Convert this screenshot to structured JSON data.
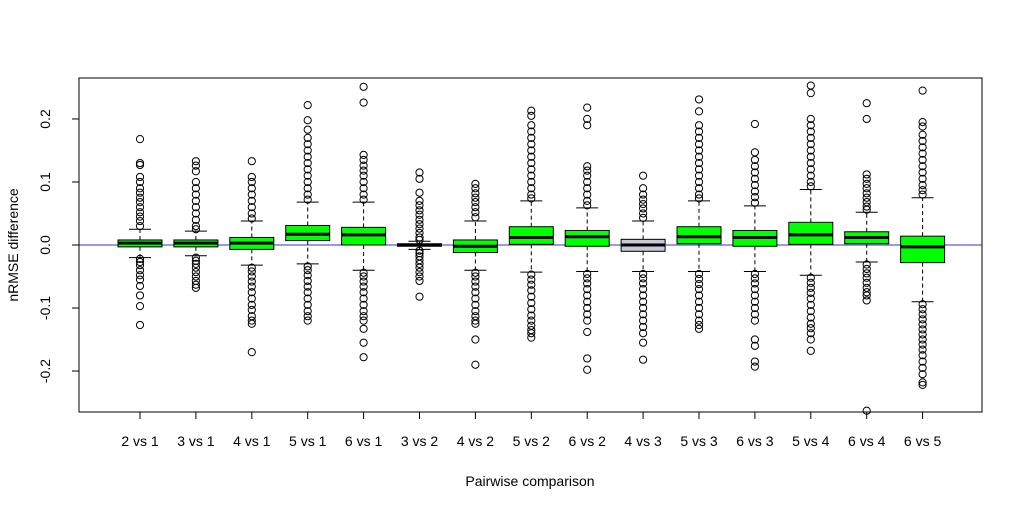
{
  "chart_data": {
    "type": "box",
    "title": "",
    "xlabel": "Pairwise comparison",
    "ylabel": "nRMSE difference",
    "ylim": [
      -0.265,
      0.265
    ],
    "yticks": [
      -0.2,
      -0.1,
      0.0,
      0.1,
      0.2
    ],
    "ytick_labels": [
      "-0.2",
      "-0.1",
      "0.0",
      "0.1",
      "0.2"
    ],
    "reference_line": {
      "y": 0.0,
      "color": "#3333cc"
    },
    "grid": false,
    "legend": "none",
    "colors": {
      "improved": "#00ff00",
      "dark": "#000080",
      "neutral": "#c8c8d8"
    },
    "categories": [
      "2 vs 1",
      "3 vs 1",
      "4 vs 1",
      "5 vs 1",
      "6 vs 1",
      "3 vs 2",
      "4 vs 2",
      "5 vs 2",
      "6 vs 2",
      "4 vs 3",
      "5 vs 3",
      "6 vs 3",
      "5 vs 4",
      "6 vs 4",
      "6 vs 5"
    ],
    "boxes": [
      {
        "label": "2 vs 1",
        "color": "improved",
        "whisker_low": -0.02,
        "q1": -0.003,
        "median": 0.003,
        "q3": 0.008,
        "whisker_high": 0.025,
        "outliers_high": [
          0.168,
          0.13,
          0.127,
          0.108,
          0.1,
          0.09,
          0.083,
          0.075,
          0.068,
          0.06,
          0.052,
          0.045,
          0.038,
          0.03
        ],
        "outliers_low": [
          -0.022,
          -0.027,
          -0.032,
          -0.04,
          -0.048,
          -0.055,
          -0.065,
          -0.08,
          -0.097,
          -0.127
        ]
      },
      {
        "label": "3 vs 1",
        "color": "improved",
        "whisker_low": -0.017,
        "q1": -0.003,
        "median": 0.003,
        "q3": 0.008,
        "whisker_high": 0.022,
        "outliers_high": [
          0.133,
          0.126,
          0.117,
          0.1,
          0.09,
          0.08,
          0.07,
          0.06,
          0.05,
          0.04,
          0.03,
          0.025
        ],
        "outliers_low": [
          -0.02,
          -0.025,
          -0.03,
          -0.036,
          -0.043,
          -0.05,
          -0.057,
          -0.063,
          -0.068
        ]
      },
      {
        "label": "4 vs 1",
        "color": "improved",
        "whisker_low": -0.032,
        "q1": -0.007,
        "median": 0.003,
        "q3": 0.012,
        "whisker_high": 0.038,
        "outliers_high": [
          0.133,
          0.108,
          0.1,
          0.09,
          0.08,
          0.07,
          0.06,
          0.05,
          0.042
        ],
        "outliers_low": [
          -0.036,
          -0.042,
          -0.05,
          -0.058,
          -0.066,
          -0.075,
          -0.085,
          -0.095,
          -0.103,
          -0.113,
          -0.12,
          -0.125,
          -0.17
        ]
      },
      {
        "label": "5 vs 1",
        "color": "improved",
        "whisker_low": -0.03,
        "q1": 0.007,
        "median": 0.017,
        "q3": 0.031,
        "whisker_high": 0.068,
        "outliers_high": [
          0.222,
          0.198,
          0.183,
          0.17,
          0.16,
          0.15,
          0.14,
          0.13,
          0.12,
          0.11,
          0.1,
          0.09,
          0.08,
          0.072
        ],
        "outliers_low": [
          -0.034,
          -0.04,
          -0.048,
          -0.057,
          -0.066,
          -0.075,
          -0.085,
          -0.095,
          -0.105,
          -0.113,
          -0.12
        ]
      },
      {
        "label": "6 vs 1",
        "color": "improved",
        "whisker_low": -0.04,
        "q1": 0.0,
        "median": 0.016,
        "q3": 0.028,
        "whisker_high": 0.068,
        "outliers_high": [
          0.251,
          0.226,
          0.143,
          0.135,
          0.126,
          0.118,
          0.11,
          0.1,
          0.09,
          0.08,
          0.072
        ],
        "outliers_low": [
          -0.044,
          -0.05,
          -0.058,
          -0.066,
          -0.075,
          -0.085,
          -0.095,
          -0.105,
          -0.113,
          -0.12,
          -0.133,
          -0.155,
          -0.178
        ]
      },
      {
        "label": "3 vs 2",
        "color": "dark",
        "whisker_low": -0.007,
        "q1": -0.002,
        "median": 0.0,
        "q3": 0.002,
        "whisker_high": 0.006,
        "outliers_high": [
          0.115,
          0.105,
          0.083,
          0.07,
          0.063,
          0.055,
          0.048,
          0.04,
          0.033,
          0.026,
          0.019,
          0.012,
          0.008
        ],
        "outliers_low": [
          -0.009,
          -0.013,
          -0.018,
          -0.024,
          -0.03,
          -0.036,
          -0.043,
          -0.05,
          -0.057,
          -0.082
        ]
      },
      {
        "label": "4 vs 2",
        "color": "improved",
        "whisker_low": -0.04,
        "q1": -0.012,
        "median": -0.002,
        "q3": 0.008,
        "whisker_high": 0.038,
        "outliers_high": [
          0.097,
          0.09,
          0.082,
          0.075,
          0.068,
          0.06,
          0.052,
          0.044
        ],
        "outliers_low": [
          -0.044,
          -0.05,
          -0.058,
          -0.066,
          -0.075,
          -0.085,
          -0.095,
          -0.105,
          -0.113,
          -0.12,
          -0.125,
          -0.15,
          -0.19
        ]
      },
      {
        "label": "5 vs 2",
        "color": "improved",
        "whisker_low": -0.043,
        "q1": 0.001,
        "median": 0.012,
        "q3": 0.029,
        "whisker_high": 0.07,
        "outliers_high": [
          0.213,
          0.205,
          0.19,
          0.18,
          0.17,
          0.16,
          0.15,
          0.14,
          0.13,
          0.12,
          0.11,
          0.1,
          0.09,
          0.08,
          0.074
        ],
        "outliers_low": [
          -0.047,
          -0.055,
          -0.063,
          -0.072,
          -0.082,
          -0.092,
          -0.102,
          -0.112,
          -0.12,
          -0.128,
          -0.135,
          -0.14,
          -0.147
        ]
      },
      {
        "label": "6 vs 2",
        "color": "improved",
        "whisker_low": -0.042,
        "q1": -0.002,
        "median": 0.013,
        "q3": 0.023,
        "whisker_high": 0.059,
        "outliers_high": [
          0.218,
          0.2,
          0.19,
          0.125,
          0.118,
          0.11,
          0.1,
          0.09,
          0.08,
          0.07,
          0.063
        ],
        "outliers_low": [
          -0.046,
          -0.053,
          -0.061,
          -0.07,
          -0.08,
          -0.09,
          -0.1,
          -0.11,
          -0.12,
          -0.138,
          -0.18,
          -0.198
        ]
      },
      {
        "label": "4 vs 3",
        "color": "neutral",
        "whisker_low": -0.042,
        "q1": -0.01,
        "median": 0.0,
        "q3": 0.009,
        "whisker_high": 0.038,
        "outliers_high": [
          0.11,
          0.09,
          0.08,
          0.072,
          0.065,
          0.058,
          0.05,
          0.043
        ],
        "outliers_low": [
          -0.046,
          -0.053,
          -0.061,
          -0.07,
          -0.08,
          -0.09,
          -0.1,
          -0.11,
          -0.12,
          -0.13,
          -0.14,
          -0.155,
          -0.182
        ]
      },
      {
        "label": "5 vs 3",
        "color": "improved",
        "whisker_low": -0.042,
        "q1": 0.002,
        "median": 0.013,
        "q3": 0.029,
        "whisker_high": 0.07,
        "outliers_high": [
          0.231,
          0.212,
          0.19,
          0.18,
          0.17,
          0.16,
          0.15,
          0.14,
          0.13,
          0.12,
          0.11,
          0.1,
          0.09,
          0.08,
          0.074
        ],
        "outliers_low": [
          -0.046,
          -0.054,
          -0.062,
          -0.07,
          -0.08,
          -0.09,
          -0.1,
          -0.11,
          -0.12,
          -0.127,
          -0.133
        ]
      },
      {
        "label": "6 vs 3",
        "color": "improved",
        "whisker_low": -0.042,
        "q1": -0.002,
        "median": 0.012,
        "q3": 0.023,
        "whisker_high": 0.062,
        "outliers_high": [
          0.192,
          0.147,
          0.135,
          0.125,
          0.115,
          0.105,
          0.095,
          0.085,
          0.076,
          0.067
        ],
        "outliers_low": [
          -0.046,
          -0.053,
          -0.061,
          -0.07,
          -0.08,
          -0.09,
          -0.1,
          -0.11,
          -0.12,
          -0.15,
          -0.16,
          -0.185,
          -0.193
        ]
      },
      {
        "label": "5 vs 4",
        "color": "improved",
        "whisker_low": -0.048,
        "q1": 0.001,
        "median": 0.016,
        "q3": 0.036,
        "whisker_high": 0.088,
        "outliers_high": [
          0.253,
          0.241,
          0.2,
          0.19,
          0.18,
          0.17,
          0.16,
          0.15,
          0.14,
          0.13,
          0.12,
          0.11,
          0.1,
          0.093
        ],
        "outliers_low": [
          -0.052,
          -0.06,
          -0.068,
          -0.076,
          -0.085,
          -0.095,
          -0.105,
          -0.115,
          -0.125,
          -0.132,
          -0.14,
          -0.15,
          -0.168
        ]
      },
      {
        "label": "6 vs 4",
        "color": "improved",
        "whisker_low": -0.027,
        "q1": 0.002,
        "median": 0.012,
        "q3": 0.021,
        "whisker_high": 0.052,
        "outliers_high": [
          0.225,
          0.2,
          0.112,
          0.105,
          0.097,
          0.09,
          0.082,
          0.075,
          0.068,
          0.061,
          0.056
        ],
        "outliers_low": [
          -0.031,
          -0.038,
          -0.045,
          -0.052,
          -0.06,
          -0.068,
          -0.075,
          -0.08,
          -0.088
        ]
      },
      {
        "label": "6 vs 5",
        "color": "improved",
        "whisker_low": -0.09,
        "q1": -0.028,
        "median": -0.003,
        "q3": 0.014,
        "whisker_high": 0.075,
        "outliers_high": [
          0.245,
          0.195,
          0.188,
          0.175,
          0.165,
          0.155,
          0.145,
          0.135,
          0.125,
          0.115,
          0.105,
          0.095,
          0.087,
          0.08
        ],
        "outliers_low": [
          -0.094,
          -0.102,
          -0.11,
          -0.118,
          -0.126,
          -0.134,
          -0.142,
          -0.15,
          -0.158,
          -0.166,
          -0.175,
          -0.185,
          -0.195,
          -0.205,
          -0.218,
          -0.222
        ]
      }
    ],
    "extra_outliers": [
      {
        "category": "6 vs 4",
        "y": -0.263
      }
    ]
  }
}
